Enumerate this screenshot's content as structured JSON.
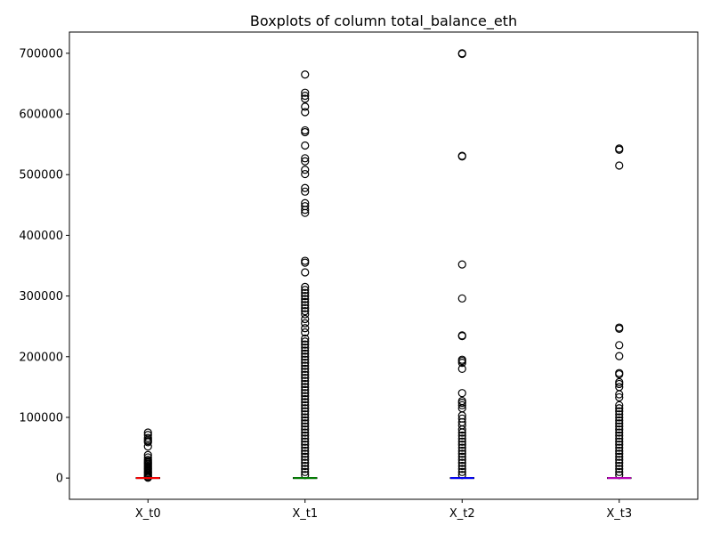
{
  "chart_data": {
    "type": "boxplot",
    "title": "Boxplots of column total_balance_eth",
    "xlabel": "",
    "ylabel": "",
    "categories": [
      "X_t0",
      "X_t1",
      "X_t2",
      "X_t3"
    ],
    "ylim": [
      -35000,
      735000
    ],
    "yticks": [
      0,
      100000,
      200000,
      300000,
      400000,
      500000,
      600000,
      700000
    ],
    "ytick_labels": [
      "0",
      "100000",
      "200000",
      "300000",
      "400000",
      "500000",
      "600000",
      "700000"
    ],
    "grid": false,
    "series": [
      {
        "category": "X_t0",
        "median": 0,
        "q1": 0,
        "q3": 0,
        "whisker_low": 0,
        "whisker_high": 0,
        "median_color": "#ff0000",
        "outliers": [
          75000,
          71000,
          66000,
          63000,
          61000,
          59000,
          52000,
          38000,
          34000,
          30000,
          28000,
          26000,
          24000,
          22000,
          20000,
          18000,
          16000,
          14000,
          12000,
          10000,
          8000,
          6000,
          4000,
          2000,
          500
        ]
      },
      {
        "category": "X_t1",
        "median": 0,
        "q1": 0,
        "q3": 0,
        "whisker_low": 0,
        "whisker_high": 0,
        "median_color": "#008000",
        "outliers": [
          665000,
          635000,
          630000,
          625000,
          612000,
          603000,
          573000,
          570000,
          548000,
          527000,
          522000,
          508000,
          501000,
          478000,
          472000,
          453000,
          448000,
          442000,
          437000,
          358000,
          355000,
          339000,
          315000,
          310000,
          305000,
          300000,
          295000,
          290000,
          285000,
          280000,
          275000,
          270000,
          262000,
          255000,
          247000,
          240000,
          230000,
          225000,
          220000,
          215000,
          210000,
          205000,
          200000,
          195000,
          190000,
          185000,
          180000,
          175000,
          170000,
          165000,
          160000,
          155000,
          150000,
          145000,
          140000,
          135000,
          130000,
          125000,
          120000,
          115000,
          110000,
          105000,
          100000,
          95000,
          90000,
          85000,
          80000,
          75000,
          70000,
          65000,
          60000,
          55000,
          50000,
          45000,
          40000,
          35000,
          30000,
          25000,
          20000,
          15000,
          10000,
          5000
        ]
      },
      {
        "category": "X_t2",
        "median": 0,
        "q1": 0,
        "q3": 0,
        "whisker_low": 0,
        "whisker_high": 0,
        "median_color": "#0000ff",
        "outliers": [
          700000,
          699000,
          531000,
          530000,
          352000,
          296000,
          235000,
          234000,
          195000,
          193000,
          190000,
          180000,
          140000,
          127000,
          124000,
          120000,
          115000,
          103000,
          98000,
          92000,
          87000,
          80000,
          75000,
          70000,
          65000,
          60000,
          55000,
          50000,
          45000,
          40000,
          35000,
          30000,
          25000,
          20000,
          15000,
          10000,
          5000
        ]
      },
      {
        "category": "X_t3",
        "median": 0,
        "q1": 0,
        "q3": 0,
        "whisker_low": 0,
        "whisker_high": 0,
        "median_color": "#bf00bf",
        "outliers": [
          543000,
          541000,
          515000,
          248000,
          246000,
          219000,
          201000,
          173000,
          171000,
          158000,
          155000,
          150000,
          138000,
          133000,
          120000,
          115000,
          110000,
          105000,
          100000,
          95000,
          90000,
          85000,
          80000,
          75000,
          70000,
          65000,
          60000,
          55000,
          50000,
          45000,
          40000,
          35000,
          30000,
          25000,
          20000,
          15000,
          10000,
          5000
        ]
      }
    ]
  }
}
